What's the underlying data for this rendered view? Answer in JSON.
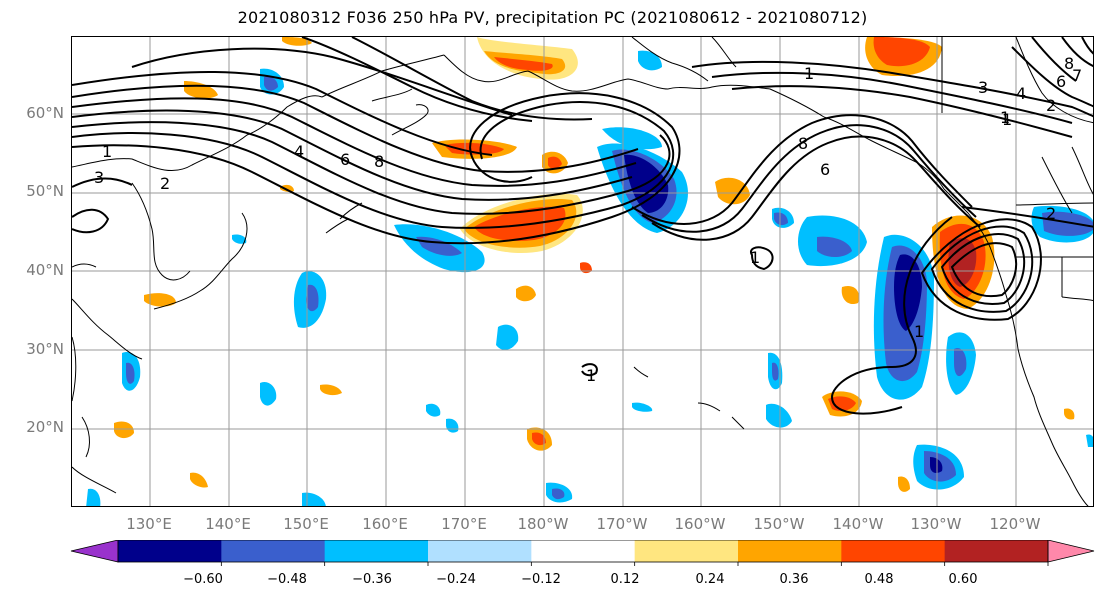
{
  "title": "2021080312 F036 250 hPa PV, precipitation PC (2021080612 - 2021080712)",
  "map": {
    "lat_labels": [
      "60°N",
      "50°N",
      "40°N",
      "30°N",
      "20°N"
    ],
    "lon_labels": [
      "130°E",
      "140°E",
      "150°E",
      "160°E",
      "170°E",
      "180°W",
      "170°W",
      "160°W",
      "150°W",
      "140°W",
      "130°W",
      "120°W"
    ],
    "grid": true,
    "pv_contour_labels": [
      "1",
      "3",
      "2",
      "4",
      "6",
      "8",
      "1",
      "8",
      "6",
      "1",
      "1",
      "1",
      "1",
      "3",
      "4",
      "6",
      "7",
      "8",
      "2",
      "2",
      "1"
    ]
  },
  "colorbar": {
    "tick_labels": [
      "−0.60",
      "−0.48",
      "−0.36",
      "−0.24",
      "−0.12",
      "0.12",
      "0.24",
      "0.36",
      "0.48",
      "0.60"
    ],
    "colors": [
      "#9932cc",
      "#00008b",
      "#3a5fcd",
      "#00bfff",
      "#b0e0ff",
      "#ffffff",
      "#ffe680",
      "#ffa500",
      "#ff4500",
      "#b22222",
      "#ff88aa"
    ]
  }
}
